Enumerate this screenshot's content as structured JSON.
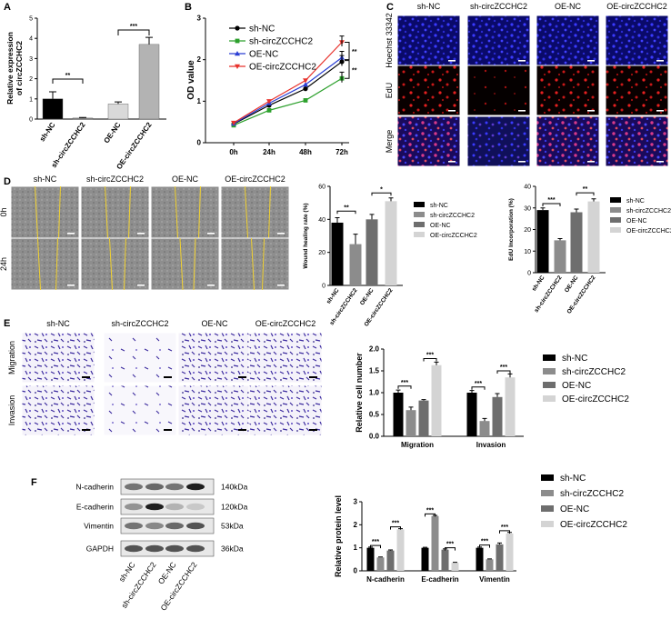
{
  "panels": {
    "A": "A",
    "B": "B",
    "C": "C",
    "D": "D",
    "E": "E",
    "F": "F"
  },
  "groups": [
    "sh-NC",
    "sh-circZCCHC2",
    "OE-NC",
    "OE-circZCCHC2"
  ],
  "colors": {
    "shNC": "#000000",
    "shCirc": "#8c8c8c",
    "oeNC": "#6e6e6e",
    "oeCirc": "#d4d4d4"
  },
  "sig": {
    "two": "**",
    "three": "***",
    "one": "*"
  },
  "chart_data": [
    {
      "id": "A",
      "type": "bar",
      "ylabel": "Relative expression of circZCCHC2",
      "ylabel_lines": [
        "Relative expression",
        "of circZCCHC2"
      ],
      "categories": [
        "sh-NC",
        "sh-circZCCHC2",
        "OE-NC",
        "OE-circZCCHC2"
      ],
      "values": [
        1.0,
        0.05,
        0.75,
        3.7
      ],
      "errors": [
        0.35,
        0.03,
        0.1,
        0.35
      ],
      "ylim": [
        0,
        5
      ],
      "yticks": [
        "0",
        "1",
        "2",
        "3",
        "4",
        "5"
      ],
      "bar_colors": [
        "#000000",
        "#8c8c8c",
        "#d9d9d9",
        "#b3b3b3"
      ]
    },
    {
      "id": "B",
      "type": "line",
      "ylabel": "OD value",
      "x": [
        "0h",
        "24h",
        "48h",
        "72h"
      ],
      "ylim": [
        0,
        3
      ],
      "yticks": [
        "0",
        "1",
        "2",
        "3"
      ],
      "series": [
        {
          "name": "sh-NC",
          "values": [
            0.45,
            0.9,
            1.3,
            1.95
          ],
          "color": "#000000",
          "marker": "circle"
        },
        {
          "name": "sh-circZCCHC2",
          "values": [
            0.42,
            0.78,
            1.02,
            1.55
          ],
          "color": "#2ca02c",
          "marker": "square"
        },
        {
          "name": "OE-NC",
          "values": [
            0.46,
            0.95,
            1.4,
            2.05
          ],
          "color": "#2b3fd4",
          "marker": "triangle"
        },
        {
          "name": "OE-circZCCHC2",
          "values": [
            0.48,
            1.0,
            1.5,
            2.42
          ],
          "color": "#e8322c",
          "marker": "tri-down"
        }
      ]
    },
    {
      "id": "D-wound",
      "type": "bar",
      "ylabel": "Wound healing rate (%)",
      "categories": [
        "sh-NC",
        "sh-circZCCHC2",
        "OE-NC",
        "OE-circZCCHC2"
      ],
      "values": [
        38,
        25,
        40,
        51
      ],
      "errors": [
        3,
        6,
        3,
        2
      ],
      "ylim": [
        0,
        60
      ],
      "yticks": [
        "0",
        "20",
        "40",
        "60"
      ],
      "legend": [
        "sh-NC",
        "sh-circZCCHC2",
        "OE-NC",
        "OE-circZCCHC2"
      ]
    },
    {
      "id": "D-edu",
      "type": "bar",
      "ylabel": "EdU Incorporation (%)",
      "categories": [
        "sh-NC",
        "sh-circZCCHC2",
        "OE-NC",
        "OE-circZCCHC2"
      ],
      "values": [
        29,
        15,
        28,
        33
      ],
      "errors": [
        1,
        0.8,
        1.5,
        1.2
      ],
      "ylim": [
        0,
        40
      ],
      "yticks": [
        "0",
        "10",
        "20",
        "30",
        "40"
      ],
      "legend": [
        "sh-NC",
        "sh-circZCCHC2",
        "OE-NC",
        "OE-circZCCHC2"
      ]
    },
    {
      "id": "E",
      "type": "bar",
      "ylabel": "Relative cell number",
      "categories": [
        "Migration",
        "Invasion"
      ],
      "ylim": [
        0,
        2.0
      ],
      "yticks": [
        "0.0",
        "0.5",
        "1.0",
        "1.5",
        "2.0"
      ],
      "series": [
        {
          "name": "sh-NC",
          "values": [
            1.0,
            1.0
          ],
          "errors": [
            0.06,
            0.05
          ]
        },
        {
          "name": "sh-circZCCHC2",
          "values": [
            0.6,
            0.35
          ],
          "errors": [
            0.07,
            0.06
          ]
        },
        {
          "name": "OE-NC",
          "values": [
            0.82,
            0.9
          ],
          "errors": [
            0.02,
            0.08
          ]
        },
        {
          "name": "OE-circZCCHC2",
          "values": [
            1.63,
            1.35
          ],
          "errors": [
            0.07,
            0.08
          ]
        }
      ]
    },
    {
      "id": "F",
      "type": "bar",
      "ylabel": "Relative protein level",
      "categories": [
        "N-cadherin",
        "E-cadherin",
        "Vimentin"
      ],
      "ylim": [
        0,
        3
      ],
      "yticks": [
        "0",
        "1",
        "2",
        "3"
      ],
      "series": [
        {
          "name": "sh-NC",
          "values": [
            1.0,
            1.0,
            1.0
          ],
          "errors": [
            0.03,
            0.02,
            0.03
          ]
        },
        {
          "name": "sh-circZCCHC2",
          "values": [
            0.58,
            2.38,
            0.5
          ],
          "errors": [
            0.02,
            0.03,
            0.02
          ]
        },
        {
          "name": "OE-NC",
          "values": [
            0.88,
            0.92,
            1.15
          ],
          "errors": [
            0.03,
            0.03,
            0.06
          ]
        },
        {
          "name": "OE-circZCCHC2",
          "values": [
            1.8,
            0.35,
            1.62
          ],
          "errors": [
            0.03,
            0.02,
            0.05
          ]
        }
      ]
    }
  ],
  "panelC": {
    "rows": [
      "Hoechst 33342",
      "EdU",
      "Merge"
    ],
    "cols": [
      "sh-NC",
      "sh-circZCCHC2",
      "OE-NC",
      "OE-circZCCHC2"
    ]
  },
  "panelD": {
    "rows": [
      "0h",
      "24h"
    ],
    "cols": [
      "sh-NC",
      "sh-circZCCHC2",
      "OE-NC",
      "OE-circZCCHC2"
    ]
  },
  "panelE": {
    "rows": [
      "Migration",
      "Invasion"
    ],
    "cols": [
      "sh-NC",
      "sh-circZCCHC2",
      "OE-NC",
      "OE-circZCCHC2"
    ]
  },
  "panelF": {
    "proteins": [
      "N-cadherin",
      "E-cadherin",
      "Vimentin",
      "GAPDH"
    ],
    "sizes": [
      "140kDa",
      "120kDa",
      "53kDa",
      "36kDa"
    ],
    "lanes": [
      "sh-NC",
      "sh-circZCCHC2",
      "OE-NC",
      "OE-circZCCHC2"
    ]
  }
}
